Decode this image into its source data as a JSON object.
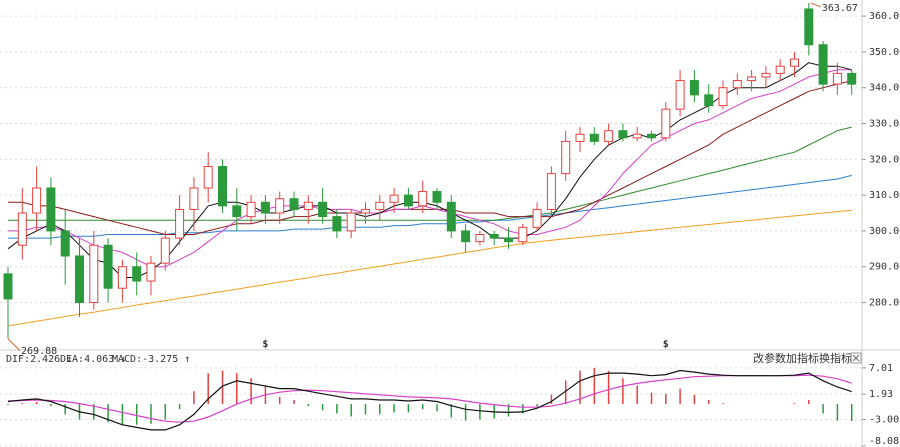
{
  "chart_data": [
    {
      "type": "candlestick",
      "candles": {
        "open": [
          288,
          296,
          305,
          312,
          300,
          293,
          280,
          296,
          284,
          290,
          286,
          291,
          298,
          306,
          312,
          318,
          307,
          304,
          308,
          305,
          309,
          306,
          308,
          304,
          300,
          305,
          306,
          308,
          310,
          307,
          311,
          308,
          300,
          297,
          299,
          298,
          297,
          301,
          306,
          316,
          325,
          327,
          325,
          328,
          326,
          327,
          326,
          334,
          342,
          338,
          335,
          340,
          342,
          343,
          344,
          346,
          362,
          352,
          341,
          344
        ],
        "high": [
          290,
          312,
          318,
          315,
          306,
          298,
          300,
          298,
          292,
          294,
          293,
          300,
          310,
          315,
          322,
          320,
          312,
          310,
          310,
          311,
          311,
          310,
          312,
          306,
          306,
          308,
          310,
          312,
          312,
          314,
          312,
          310,
          302,
          300,
          300,
          301,
          302,
          308,
          318,
          328,
          329,
          329,
          330,
          330,
          329,
          328,
          336,
          345,
          345,
          341,
          342,
          344,
          345,
          346,
          348,
          350,
          363.67,
          353,
          347,
          345
        ],
        "low": [
          269.88,
          292,
          300,
          296,
          285,
          276,
          278,
          280,
          280,
          282,
          282,
          289,
          296,
          300,
          308,
          305,
          300,
          302,
          302,
          302,
          304,
          302,
          302,
          298,
          298,
          302,
          303,
          305,
          306,
          305,
          306,
          298,
          294,
          296,
          296,
          295,
          296,
          300,
          304,
          314,
          322,
          324,
          324,
          325,
          325,
          325,
          325,
          332,
          336,
          333,
          334,
          338,
          339,
          340,
          342,
          343,
          349,
          339,
          338,
          338
        ],
        "close": [
          281,
          305,
          312,
          300,
          293,
          280,
          296,
          284,
          290,
          286,
          291,
          298,
          306,
          312,
          318,
          307,
          304,
          308,
          305,
          309,
          306,
          308,
          304,
          300,
          305,
          306,
          308,
          310,
          307,
          311,
          308,
          300,
          297,
          299,
          298,
          297,
          301,
          306,
          316,
          325,
          327,
          325,
          328,
          326,
          327,
          326,
          334,
          342,
          338,
          335,
          340,
          342,
          343,
          344,
          346,
          348,
          352,
          341,
          344,
          341
        ]
      },
      "up_color": "#e8413e",
      "down_color": "#2c9a3c",
      "series": [
        {
          "color": "#f0a020",
          "values": [
            273.5,
            274.1,
            274.8,
            275.4,
            276.1,
            276.7,
            277.3,
            278,
            278.6,
            279.3,
            279.9,
            280.5,
            281.2,
            281.8,
            282.5,
            283.1,
            283.7,
            284.4,
            285,
            285.7,
            286.3,
            286.9,
            287.6,
            288.2,
            288.9,
            289.5,
            290.1,
            290.8,
            291.4,
            292.1,
            292.7,
            293.3,
            294,
            294.6,
            295.3,
            295.9,
            296.5,
            297,
            297.4,
            297.8,
            298.2,
            298.6,
            299,
            299.4,
            299.8,
            300.2,
            300.6,
            301,
            301.4,
            301.8,
            302.2,
            302.6,
            303,
            303.4,
            303.8,
            304.2,
            304.6,
            305,
            305.4,
            305.8
          ]
        },
        {
          "color": "#2f7fd0",
          "values": [
            298,
            298,
            298,
            298,
            298.5,
            298.5,
            298.5,
            299,
            299,
            299,
            299,
            299,
            299.5,
            299.5,
            299.5,
            300,
            300,
            300,
            300,
            300,
            300.5,
            300.5,
            300.5,
            301,
            301,
            301,
            301,
            301.5,
            301.5,
            302,
            302,
            302,
            302.5,
            302.5,
            303,
            303,
            303.5,
            304,
            304.5,
            305,
            305.5,
            306,
            306.5,
            307,
            307.5,
            308,
            308.5,
            309,
            309.5,
            310,
            310.5,
            311,
            311.5,
            312,
            312.5,
            313,
            313.5,
            314,
            314.5,
            315.5
          ]
        },
        {
          "color": "#2e8b2e",
          "values": [
            303,
            303,
            303,
            303,
            303,
            303,
            303,
            303,
            303,
            303,
            303,
            303,
            303,
            303,
            303,
            303,
            303,
            303,
            303,
            303,
            303,
            303,
            303,
            303,
            303,
            303,
            303,
            303,
            303,
            303,
            303,
            303,
            303,
            303,
            303,
            303.5,
            304,
            304.5,
            305,
            306,
            307,
            308,
            309,
            310,
            311,
            312,
            313,
            314,
            315,
            316,
            317,
            318,
            319,
            320,
            321,
            322,
            324,
            326,
            328,
            329
          ]
        },
        {
          "color": "#8b1a1a",
          "values": [
            308,
            308,
            307,
            307,
            306,
            305,
            304,
            303,
            302,
            301,
            300,
            299,
            299,
            299,
            300,
            301,
            302,
            302,
            303,
            303,
            304,
            304,
            305,
            305,
            305,
            305,
            305,
            306,
            306,
            306,
            306,
            306,
            305,
            305,
            305,
            304,
            304,
            304,
            304,
            305,
            306,
            308,
            310,
            312,
            314,
            316,
            318,
            320,
            322,
            324,
            327,
            329,
            331,
            333,
            335,
            337,
            339,
            340,
            341,
            342
          ]
        },
        {
          "color": "#d63fc8",
          "values": [
            300,
            300,
            301,
            301,
            300,
            298,
            296,
            295,
            294,
            292,
            290,
            290,
            292,
            294,
            297,
            300,
            303,
            305,
            306,
            307,
            307,
            307,
            306,
            306,
            306,
            305,
            305,
            306,
            306,
            307,
            306,
            305,
            304,
            303,
            302,
            300,
            299,
            299,
            300,
            301,
            303,
            307,
            311,
            316,
            320,
            324,
            326,
            328,
            330,
            331,
            333,
            335,
            337,
            338,
            339,
            341,
            343,
            344,
            345,
            345
          ]
        },
        {
          "color": "#111111",
          "values": [
            295,
            298,
            300,
            302,
            300,
            296,
            292,
            291,
            287,
            287,
            289,
            292,
            297,
            302,
            307,
            308,
            308,
            307,
            305,
            305,
            306,
            307,
            307,
            305,
            305,
            304,
            305,
            307,
            308,
            308,
            307,
            305,
            303,
            301,
            298,
            298,
            298,
            300,
            304,
            309,
            315,
            320,
            324,
            326,
            327,
            326,
            328,
            331,
            333,
            335,
            338,
            340,
            340,
            340,
            342,
            344,
            347,
            346,
            346,
            345
          ]
        }
      ],
      "ylim": [
        267.3,
        364.5
      ],
      "yticks": [
        {
          "value": 280,
          "label": "280.00"
        },
        {
          "value": 290,
          "label": "290.00"
        },
        {
          "value": 300,
          "label": "300.00"
        },
        {
          "value": 310,
          "label": "310.00"
        },
        {
          "value": 320,
          "label": "320.00"
        },
        {
          "value": 330,
          "label": "330.00"
        },
        {
          "value": 340,
          "label": "340.00"
        },
        {
          "value": 350,
          "label": "350.00"
        },
        {
          "value": 360,
          "label": "360.00"
        }
      ],
      "grid": true,
      "markers": [
        {
          "index": 18,
          "label": "$"
        },
        {
          "index": 46,
          "label": "$"
        }
      ]
    },
    {
      "type": "macd",
      "legend": [
        "DIF:2.426 ↓",
        "DEA:4.063 ↓",
        "MACD:-3.275 ↑"
      ],
      "buttons": [
        "改参数",
        "加指标",
        "换指标"
      ],
      "dif": {
        "color": "#111111",
        "values": [
          0.5,
          0.8,
          1.0,
          0.5,
          -0.5,
          -1.5,
          -2.0,
          -3.0,
          -4.0,
          -4.5,
          -5.0,
          -5.0,
          -4.0,
          -2.0,
          1.0,
          3.5,
          4.5,
          4.0,
          3.5,
          3.0,
          3.0,
          2.5,
          2.0,
          1.5,
          1.0,
          1.0,
          0.8,
          0.8,
          0.6,
          0.8,
          0.5,
          -0.3,
          -1.0,
          -1.3,
          -1.5,
          -1.6,
          -1.5,
          -0.8,
          0.5,
          2.5,
          4.5,
          5.5,
          6.0,
          6.0,
          5.8,
          5.5,
          5.7,
          6.5,
          6.2,
          5.8,
          5.6,
          5.5,
          5.5,
          5.5,
          5.5,
          5.6,
          6.0,
          4.5,
          3.3,
          2.426
        ]
      },
      "dea": {
        "color": "#d63fc8",
        "values": [
          0.6,
          0.7,
          0.8,
          0.7,
          0.5,
          0.1,
          -0.4,
          -1.0,
          -1.6,
          -2.2,
          -2.8,
          -3.3,
          -3.5,
          -3.3,
          -2.5,
          -1.3,
          0.0,
          1.0,
          1.8,
          2.3,
          2.6,
          2.7,
          2.6,
          2.4,
          2.2,
          2.0,
          1.8,
          1.6,
          1.4,
          1.3,
          1.2,
          1.0,
          0.6,
          0.2,
          -0.1,
          -0.4,
          -0.6,
          -0.6,
          -0.4,
          0.2,
          1.0,
          2.0,
          2.8,
          3.5,
          4.0,
          4.4,
          4.7,
          5.0,
          5.3,
          5.4,
          5.5,
          5.5,
          5.5,
          5.5,
          5.5,
          5.5,
          5.6,
          5.4,
          4.9,
          4.063
        ]
      },
      "histogram": {
        "up_color": "#e8413e",
        "down_color": "#2c9a3c",
        "values": [
          -0.2,
          0.2,
          0.4,
          -0.4,
          -2.0,
          -3.0,
          -3.0,
          -3.5,
          -4.0,
          -4.0,
          -3.8,
          -3.0,
          -1.0,
          2.5,
          6.0,
          6.5,
          6.0,
          5.0,
          3.4,
          1.4,
          0.8,
          -0.4,
          -1.2,
          -1.8,
          -2.4,
          -2.0,
          -2.0,
          -1.6,
          -1.6,
          -1.0,
          -1.4,
          -2.6,
          -3.2,
          -3.0,
          -2.8,
          -2.4,
          -1.8,
          -0.4,
          1.8,
          4.6,
          6.5,
          7.0,
          6.4,
          5.0,
          3.6,
          2.2,
          2.0,
          3.0,
          1.8,
          0.8,
          0.2,
          0,
          0,
          0,
          0,
          0.2,
          0.8,
          -1.8,
          -3.2,
          -3.275
        ]
      },
      "ylim": [
        -8.3,
        9.5
      ],
      "yticks": [
        7.01,
        1.93,
        {
          "value": -3,
          "label": "-3.00"
        },
        -8.08
      ],
      "grid": true
    }
  ]
}
